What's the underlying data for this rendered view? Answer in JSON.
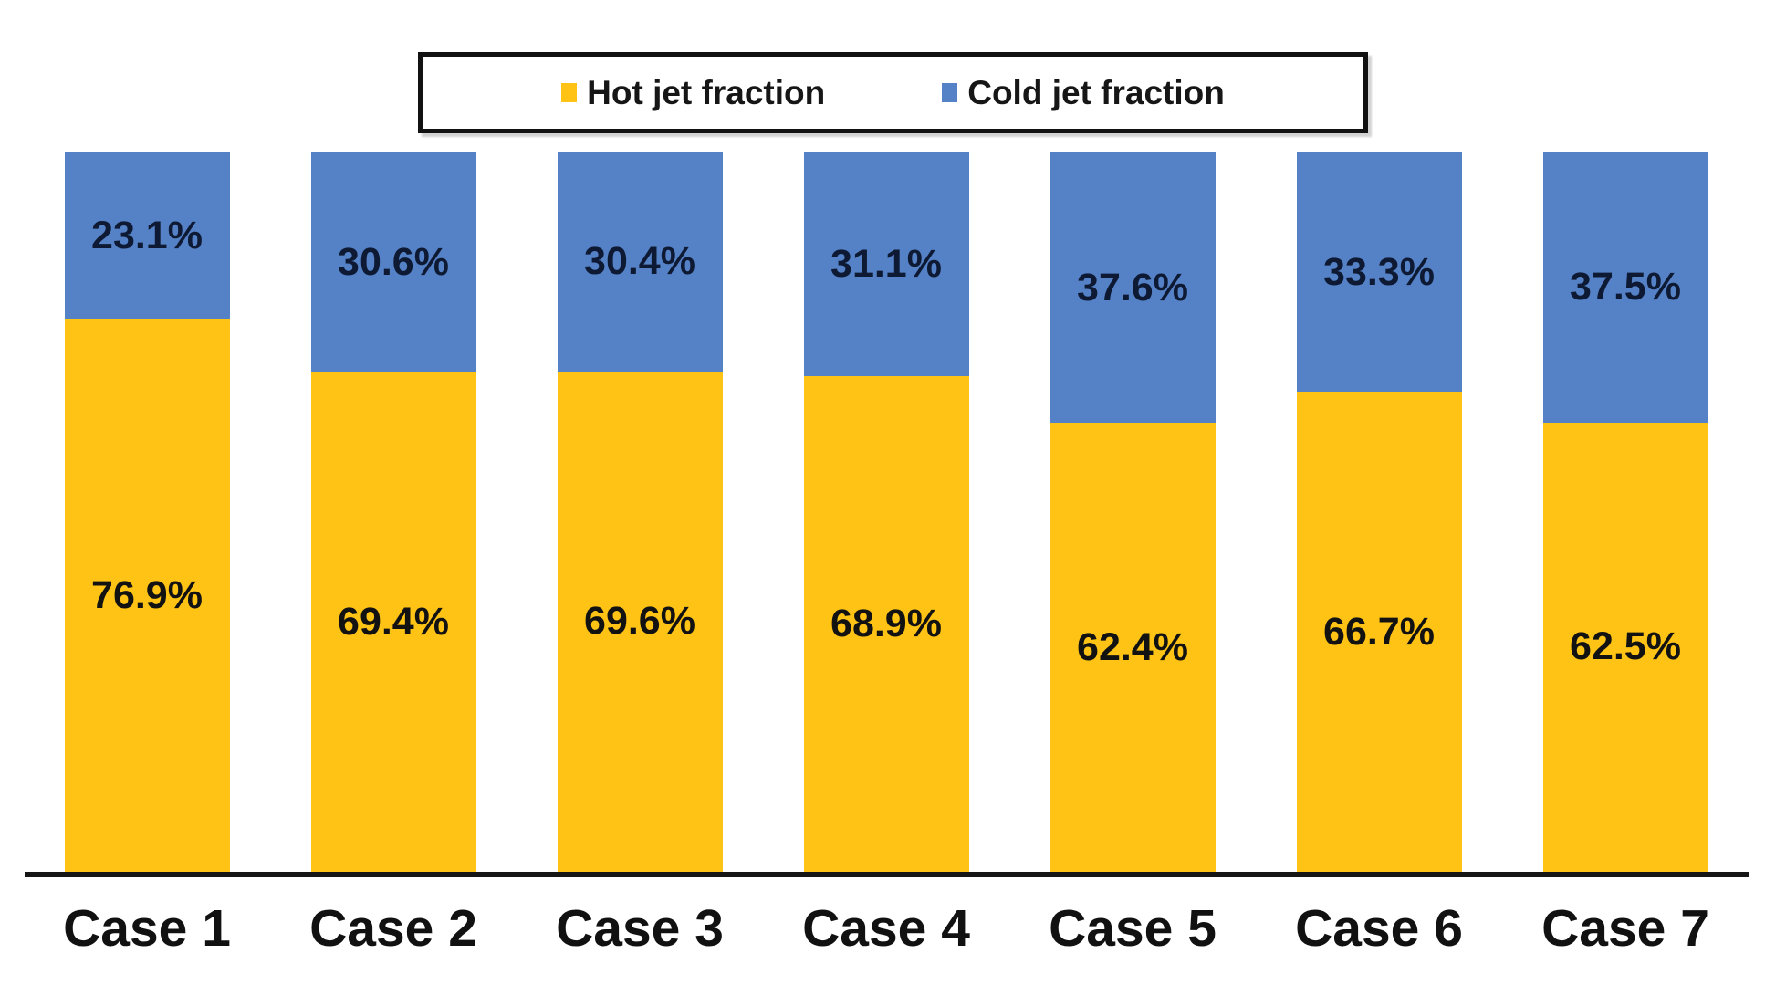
{
  "chart_data": {
    "type": "bar",
    "stacked": true,
    "unit": "%",
    "categories": [
      "Case 1",
      "Case 2",
      "Case 3",
      "Case 4",
      "Case 5",
      "Case 6",
      "Case 7"
    ],
    "series": [
      {
        "name": "Hot jet fraction",
        "color": "#FEC314",
        "values": [
          76.9,
          69.4,
          69.6,
          68.9,
          62.4,
          66.7,
          62.5
        ],
        "value_labels": [
          "76.9%",
          "69.4%",
          "69.6%",
          "68.9%",
          "62.4%",
          "66.7%",
          "62.5%"
        ]
      },
      {
        "name": "Cold jet fraction",
        "color": "#5581C6",
        "values": [
          23.1,
          30.6,
          30.4,
          31.1,
          37.6,
          33.3,
          37.5
        ],
        "value_labels": [
          "23.1%",
          "30.6%",
          "30.4%",
          "31.1%",
          "37.6%",
          "33.3%",
          "37.5%"
        ]
      }
    ],
    "ylim": [
      0,
      100
    ],
    "grid": false,
    "legend_position": "top",
    "value_labels_shown": true
  },
  "colors": {
    "hot": "#FEC314",
    "cold": "#5581C6",
    "axis": "#161616",
    "label_on_cold": "#0e1a33",
    "label_on_hot": "#121212",
    "legend_border": "#121212",
    "background": "#ffffff"
  }
}
